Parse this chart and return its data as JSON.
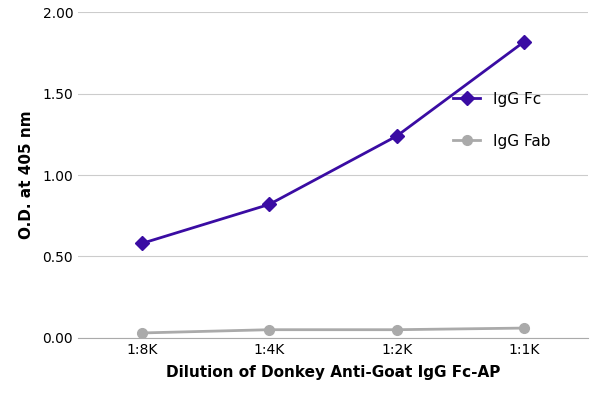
{
  "x_labels": [
    "1:8K",
    "1:4K",
    "1:2K",
    "1:1K"
  ],
  "x_values": [
    0,
    1,
    2,
    3
  ],
  "igg_fc_values": [
    0.58,
    0.82,
    1.24,
    1.82
  ],
  "igg_fab_values": [
    0.03,
    0.05,
    0.05,
    0.06
  ],
  "fc_color": "#3a0ca3",
  "fab_color": "#aaaaaa",
  "fc_label": "IgG Fc",
  "fab_label": "IgG Fab",
  "xlabel": "Dilution of Donkey Anti-Goat IgG Fc-AP",
  "ylabel": "O.D. at 405 nm",
  "ylim": [
    0.0,
    2.0
  ],
  "yticks": [
    0.0,
    0.5,
    1.0,
    1.5,
    2.0
  ],
  "line_width": 2.0,
  "fc_marker": "D",
  "fab_marker": "o",
  "marker_size": 7,
  "bg_color": "#ffffff",
  "grid_color": "#cccccc",
  "tick_fontsize": 10,
  "label_fontsize": 11,
  "legend_fontsize": 11
}
